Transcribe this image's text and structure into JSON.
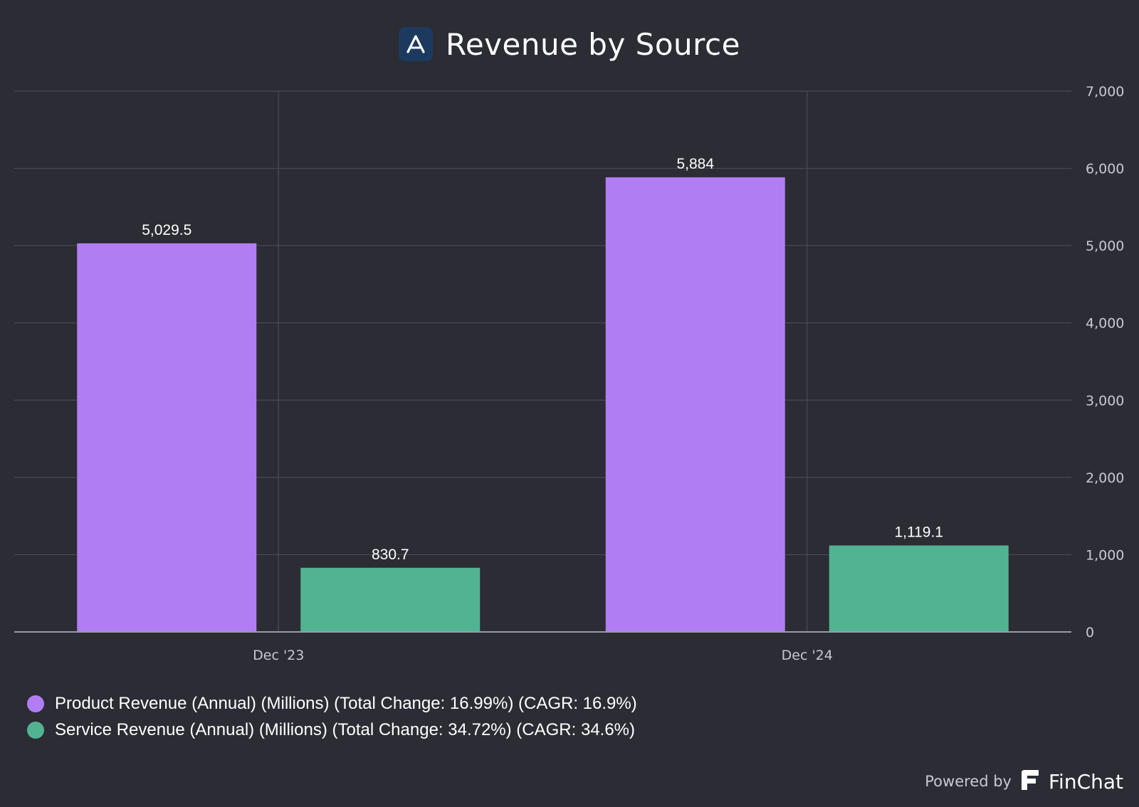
{
  "header": {
    "title": "Revenue by Source",
    "logo_icon": "ascending-a-logo-icon"
  },
  "chart_data": {
    "type": "bar",
    "title": "Revenue by Source",
    "categories": [
      "Dec '23",
      "Dec '24"
    ],
    "series": [
      {
        "name": "Product Revenue (Annual) (Millions) (Total Change: 16.99%) (CAGR: 16.9%)",
        "color": "#b07ef2",
        "values": [
          5029.5,
          5884
        ],
        "labels": [
          "5,029.5",
          "5,884"
        ]
      },
      {
        "name": "Service Revenue (Annual) (Millions) (Total Change: 34.72%) (CAGR: 34.6%)",
        "color": "#52b392",
        "values": [
          830.7,
          1119.1
        ],
        "labels": [
          "830.7",
          "1,119.1"
        ]
      }
    ],
    "ylim": [
      0,
      7000
    ],
    "yticks": [
      0,
      1000,
      2000,
      3000,
      4000,
      5000,
      6000,
      7000
    ],
    "ytick_labels": [
      "0",
      "1,000",
      "2,000",
      "3,000",
      "4,000",
      "5,000",
      "6,000",
      "7,000"
    ],
    "yaxis_side": "right",
    "grid": true,
    "legend_position": "bottom-left"
  },
  "footer": {
    "powered_by": "Powered by",
    "brand": "FinChat",
    "brand_icon": "finchat-logo-icon"
  },
  "colors": {
    "background": "#2b2c34",
    "grid": "#4a4b53",
    "axis": "#9a9aa3",
    "text": "#ffffff",
    "tick_text": "#c9c9d1"
  }
}
